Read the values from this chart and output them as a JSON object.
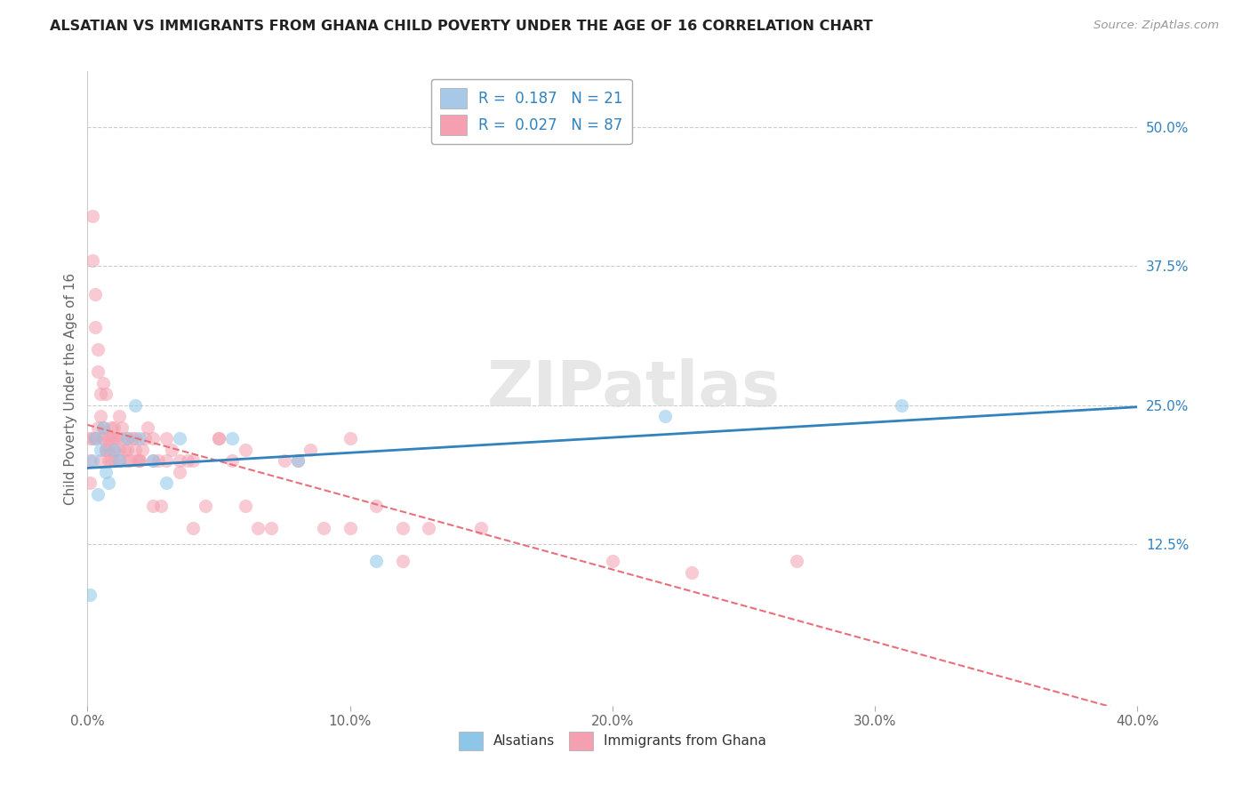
{
  "title": "ALSATIAN VS IMMIGRANTS FROM GHANA CHILD POVERTY UNDER THE AGE OF 16 CORRELATION CHART",
  "source": "Source: ZipAtlas.com",
  "ylabel": "Child Poverty Under the Age of 16",
  "xlim": [
    0.0,
    40.0
  ],
  "ylim": [
    -2.0,
    55.0
  ],
  "xticks": [
    0.0,
    10.0,
    20.0,
    30.0,
    40.0
  ],
  "xtick_labels": [
    "0.0%",
    "10.0%",
    "20.0%",
    "30.0%",
    "40.0%"
  ],
  "ytick_right_vals": [
    12.5,
    25.0,
    37.5,
    50.0
  ],
  "ytick_right_labels": [
    "12.5%",
    "25.0%",
    "37.5%",
    "50.0%"
  ],
  "watermark": "ZIPatlas",
  "legend_entries": [
    {
      "label": "R =  0.187   N = 21",
      "color": "#a8c8e8"
    },
    {
      "label": "R =  0.027   N = 87",
      "color": "#f4a0b0"
    }
  ],
  "alsatian_x": [
    0.1,
    0.2,
    0.3,
    0.4,
    0.5,
    0.6,
    0.7,
    0.8,
    1.0,
    1.2,
    1.5,
    1.8,
    2.0,
    2.5,
    3.0,
    3.5,
    5.5,
    8.0,
    11.0,
    22.0,
    31.0
  ],
  "alsatian_y": [
    8.0,
    20.0,
    22.0,
    17.0,
    21.0,
    23.0,
    19.0,
    18.0,
    21.0,
    20.0,
    22.0,
    25.0,
    22.0,
    20.0,
    18.0,
    22.0,
    22.0,
    20.0,
    11.0,
    24.0,
    25.0
  ],
  "ghana_x": [
    0.1,
    0.1,
    0.2,
    0.2,
    0.3,
    0.3,
    0.4,
    0.4,
    0.5,
    0.5,
    0.6,
    0.6,
    0.6,
    0.7,
    0.7,
    0.8,
    0.8,
    0.9,
    0.9,
    1.0,
    1.0,
    1.0,
    1.1,
    1.2,
    1.2,
    1.3,
    1.3,
    1.4,
    1.5,
    1.5,
    1.6,
    1.7,
    1.8,
    1.9,
    2.0,
    2.1,
    2.2,
    2.3,
    2.5,
    2.5,
    2.7,
    2.8,
    3.0,
    3.2,
    3.5,
    3.8,
    4.0,
    4.5,
    5.0,
    5.5,
    6.0,
    6.5,
    7.0,
    8.0,
    9.0,
    10.0,
    11.0,
    12.0,
    13.0,
    0.1,
    0.2,
    0.3,
    0.4,
    0.5,
    0.6,
    0.7,
    0.8,
    0.9,
    1.0,
    1.2,
    1.5,
    1.8,
    2.0,
    2.5,
    3.0,
    3.5,
    4.0,
    5.0,
    6.0,
    7.5,
    8.5,
    10.0,
    12.0,
    15.0,
    20.0,
    23.0,
    27.0
  ],
  "ghana_y": [
    20.0,
    22.0,
    38.0,
    42.0,
    35.0,
    32.0,
    28.0,
    30.0,
    26.0,
    24.0,
    22.0,
    27.0,
    23.0,
    21.0,
    26.0,
    20.0,
    22.0,
    22.0,
    23.0,
    20.0,
    21.0,
    23.0,
    22.0,
    24.0,
    20.0,
    22.0,
    23.0,
    21.0,
    20.0,
    21.0,
    20.0,
    22.0,
    21.0,
    20.0,
    20.0,
    21.0,
    22.0,
    23.0,
    20.0,
    16.0,
    20.0,
    16.0,
    20.0,
    21.0,
    19.0,
    20.0,
    14.0,
    16.0,
    22.0,
    20.0,
    16.0,
    14.0,
    14.0,
    20.0,
    14.0,
    14.0,
    16.0,
    14.0,
    14.0,
    18.0,
    22.0,
    22.0,
    23.0,
    20.0,
    22.0,
    21.0,
    21.0,
    20.0,
    22.0,
    21.0,
    22.0,
    22.0,
    20.0,
    22.0,
    22.0,
    20.0,
    20.0,
    22.0,
    21.0,
    20.0,
    21.0,
    22.0,
    11.0,
    14.0,
    11.0,
    10.0,
    11.0
  ],
  "alsatian_color": "#8ec6e8",
  "ghana_color": "#f4a0b0",
  "alsatian_line_color": "#3182bd",
  "ghana_line_color": "#e8707a",
  "marker_size": 120,
  "marker_alpha": 0.55,
  "background_color": "#ffffff",
  "grid_color": "#cccccc"
}
